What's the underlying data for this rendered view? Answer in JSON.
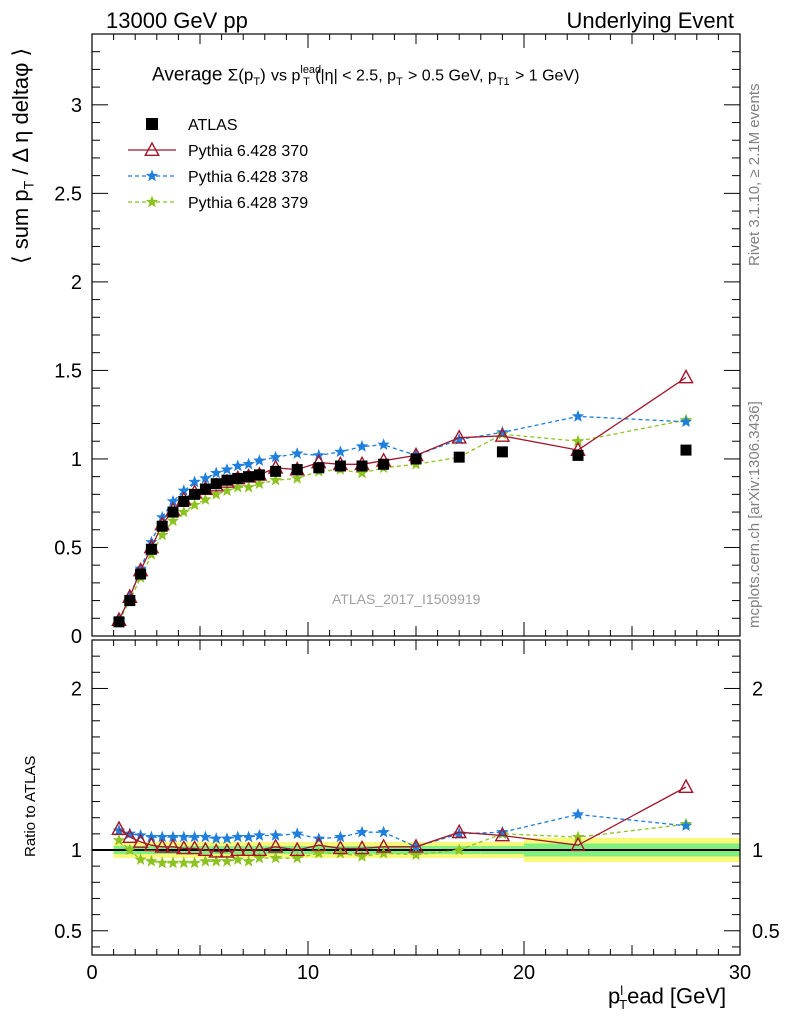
{
  "header": {
    "left": "13000 GeV pp",
    "right": "Underlying Event"
  },
  "side": {
    "rivet": "Rivet 3.1.10, ≥ 2.1M events",
    "mcplots": "mcplots.cern.ch [arXiv:1306.3436]"
  },
  "watermark": "ATLAS_2017_I1509919",
  "main_title": {
    "prefix": "Average",
    "sigma": "Σ(p",
    "sub_T": "T",
    "close": ")",
    "vs": "vs p",
    "sup_lead": "lead",
    "sub_T2": "T",
    "rest1": "(|η| < 2.5, p",
    "sub_T3": "T",
    "rest2": "> 0.5 GeV, p",
    "sub_T1": "T1",
    "rest3": "> 1 GeV)"
  },
  "ylabel_main": {
    "a": "⟨ sum p",
    "sub": "T",
    "b": "/ Δ η deltaφ ⟩"
  },
  "ylabel_ratio": "Ratio to ATLAS",
  "xlabel": {
    "a": "p",
    "sub": "T",
    "sup": "l",
    "b": "ead [GeV]"
  },
  "colors": {
    "atlas": "#000000",
    "s370": "#a0162a",
    "s378": "#1f7fdc",
    "s379": "#8cc320",
    "band_green": "#7ff07f",
    "band_yellow": "#f8f87a"
  },
  "chart_data": [
    {
      "type": "scatter",
      "title": "Average Σ(pT) vs pT lead (|η| < 2.5, pT > 0.5 GeV, pT1 > 1 GeV)",
      "xlabel": "pT lead [GeV]",
      "ylabel": "⟨ sum pT / Δη deltaφ ⟩",
      "xlim": [
        0,
        30
      ],
      "ylim": [
        0,
        3.4
      ],
      "x_ticks": [
        0,
        10,
        20,
        30
      ],
      "y_ticks": [
        0,
        0.5,
        1,
        1.5,
        2,
        2.5,
        3
      ],
      "legend": "top-left",
      "x": [
        1.25,
        1.75,
        2.25,
        2.75,
        3.25,
        3.75,
        4.25,
        4.75,
        5.25,
        5.75,
        6.25,
        6.75,
        7.25,
        7.75,
        8.5,
        9.5,
        10.5,
        11.5,
        12.5,
        13.5,
        15,
        17,
        19,
        22.5,
        27.5
      ],
      "series": [
        {
          "name": "ATLAS",
          "marker": "square",
          "values": [
            0.08,
            0.2,
            0.35,
            0.49,
            0.62,
            0.7,
            0.76,
            0.8,
            0.83,
            0.86,
            0.88,
            0.89,
            0.9,
            0.91,
            0.93,
            0.94,
            0.95,
            0.96,
            0.96,
            0.97,
            1.0,
            1.01,
            1.04,
            1.02,
            1.05
          ]
        },
        {
          "name": "Pythia 6.428 370",
          "marker": "triangle",
          "line": "solid",
          "values": [
            0.09,
            0.22,
            0.37,
            0.5,
            0.63,
            0.71,
            0.77,
            0.81,
            0.83,
            0.85,
            0.87,
            0.89,
            0.9,
            0.91,
            0.95,
            0.94,
            0.98,
            0.97,
            0.97,
            0.99,
            1.02,
            1.12,
            1.13,
            1.05,
            1.46
          ]
        },
        {
          "name": "Pythia 6.428 378",
          "marker": "star",
          "line": "dashed",
          "values": [
            0.09,
            0.22,
            0.38,
            0.53,
            0.67,
            0.76,
            0.82,
            0.87,
            0.89,
            0.92,
            0.94,
            0.96,
            0.97,
            0.99,
            1.01,
            1.03,
            1.02,
            1.04,
            1.07,
            1.08,
            1.02,
            1.11,
            1.15,
            1.24,
            1.21
          ]
        },
        {
          "name": "Pythia 6.428 379",
          "marker": "star",
          "line": "dashed",
          "values": [
            0.085,
            0.2,
            0.33,
            0.46,
            0.57,
            0.65,
            0.7,
            0.74,
            0.77,
            0.8,
            0.82,
            0.84,
            0.84,
            0.86,
            0.88,
            0.89,
            0.93,
            0.94,
            0.92,
            0.95,
            0.97,
            1.01,
            1.14,
            1.1,
            1.22
          ]
        }
      ]
    },
    {
      "type": "scatter",
      "title": "",
      "xlabel": "pT lead [GeV]",
      "ylabel": "Ratio to ATLAS",
      "xlim": [
        0,
        30
      ],
      "ylim": [
        0.35,
        2.3
      ],
      "x_ticks": [
        0,
        10,
        20,
        30
      ],
      "y_ticks": [
        0.5,
        1,
        2
      ],
      "x": [
        1.25,
        1.75,
        2.25,
        2.75,
        3.25,
        3.75,
        4.25,
        4.75,
        5.25,
        5.75,
        6.25,
        6.75,
        7.25,
        7.75,
        8.5,
        9.5,
        10.5,
        11.5,
        12.5,
        13.5,
        15,
        17,
        19,
        22.5,
        27.5
      ],
      "series": [
        {
          "name": "Pythia 6.428 370",
          "values": [
            1.13,
            1.08,
            1.05,
            1.03,
            1.02,
            1.02,
            1.01,
            1.01,
            1.0,
            0.99,
            0.99,
            1.0,
            1.0,
            1.0,
            1.02,
            1.0,
            1.03,
            1.01,
            1.01,
            1.02,
            1.02,
            1.11,
            1.09,
            1.03,
            1.39
          ]
        },
        {
          "name": "Pythia 6.428 378",
          "values": [
            1.12,
            1.1,
            1.09,
            1.08,
            1.08,
            1.08,
            1.08,
            1.08,
            1.08,
            1.07,
            1.07,
            1.08,
            1.08,
            1.09,
            1.09,
            1.1,
            1.07,
            1.08,
            1.11,
            1.11,
            1.02,
            1.1,
            1.11,
            1.22,
            1.15
          ]
        },
        {
          "name": "Pythia 6.428 379",
          "values": [
            1.06,
            1.0,
            0.94,
            0.93,
            0.92,
            0.92,
            0.92,
            0.92,
            0.93,
            0.93,
            0.93,
            0.94,
            0.93,
            0.95,
            0.95,
            0.95,
            0.98,
            0.98,
            0.96,
            0.98,
            0.97,
            1.0,
            1.1,
            1.08,
            1.16
          ]
        }
      ]
    }
  ]
}
